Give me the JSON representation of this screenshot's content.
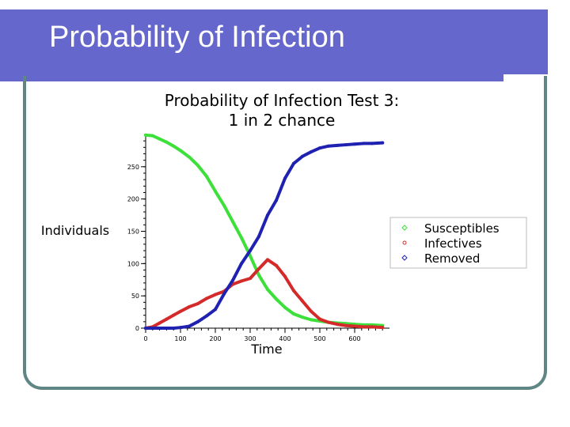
{
  "slide": {
    "title": "Probability of Infection"
  },
  "colors": {
    "title_bar": "#6667cc",
    "frame": "#5f8585",
    "susceptibles": "#3de03a",
    "infectives": "#d42a2a",
    "removed": "#1f22b0"
  },
  "chart_data": {
    "type": "line",
    "title_lines": [
      "Probability of Infection Test 3:",
      "1 in 2 chance"
    ],
    "xlabel": "Time",
    "ylabel": "Individuals",
    "xlim": [
      0,
      700
    ],
    "ylim": [
      0,
      300
    ],
    "xticks": [
      0,
      100,
      200,
      300,
      400,
      500,
      600
    ],
    "yticks": [
      0,
      50,
      100,
      150,
      200,
      250
    ],
    "ytick_labels": [
      "0",
      "50",
      "100",
      "150",
      "200",
      "250"
    ],
    "xtick_labels": [
      "0",
      "100",
      "200",
      "300",
      "400",
      "500",
      "600"
    ],
    "legend_position": "right",
    "grid": false,
    "x": [
      0,
      20,
      40,
      60,
      80,
      100,
      125,
      150,
      175,
      200,
      225,
      250,
      275,
      300,
      325,
      350,
      375,
      400,
      425,
      450,
      475,
      500,
      525,
      550,
      575,
      600,
      625,
      650,
      680
    ],
    "series": [
      {
        "name": "Susceptibles",
        "color": "#3de03a",
        "marker": "diamond",
        "values": [
          299,
          298,
          293,
          288,
          282,
          275,
          265,
          252,
          235,
          212,
          190,
          165,
          140,
          112,
          82,
          60,
          45,
          32,
          22,
          17,
          13,
          11,
          9,
          8,
          7,
          6,
          5,
          5,
          4
        ]
      },
      {
        "name": "Infectives",
        "color": "#d42a2a",
        "marker": "circle",
        "values": [
          0,
          2,
          8,
          14,
          20,
          26,
          33,
          38,
          46,
          52,
          57,
          68,
          73,
          77,
          92,
          106,
          97,
          80,
          58,
          42,
          26,
          14,
          9,
          6,
          4,
          3,
          2,
          2,
          1
        ]
      },
      {
        "name": "Removed",
        "color": "#1f22b0",
        "marker": "diamond",
        "values": [
          0,
          0,
          0,
          0,
          0,
          1,
          3,
          10,
          19,
          29,
          53,
          74,
          100,
          120,
          142,
          175,
          198,
          232,
          255,
          266,
          273,
          279,
          282,
          283,
          284,
          285,
          286,
          286,
          287
        ]
      }
    ]
  }
}
